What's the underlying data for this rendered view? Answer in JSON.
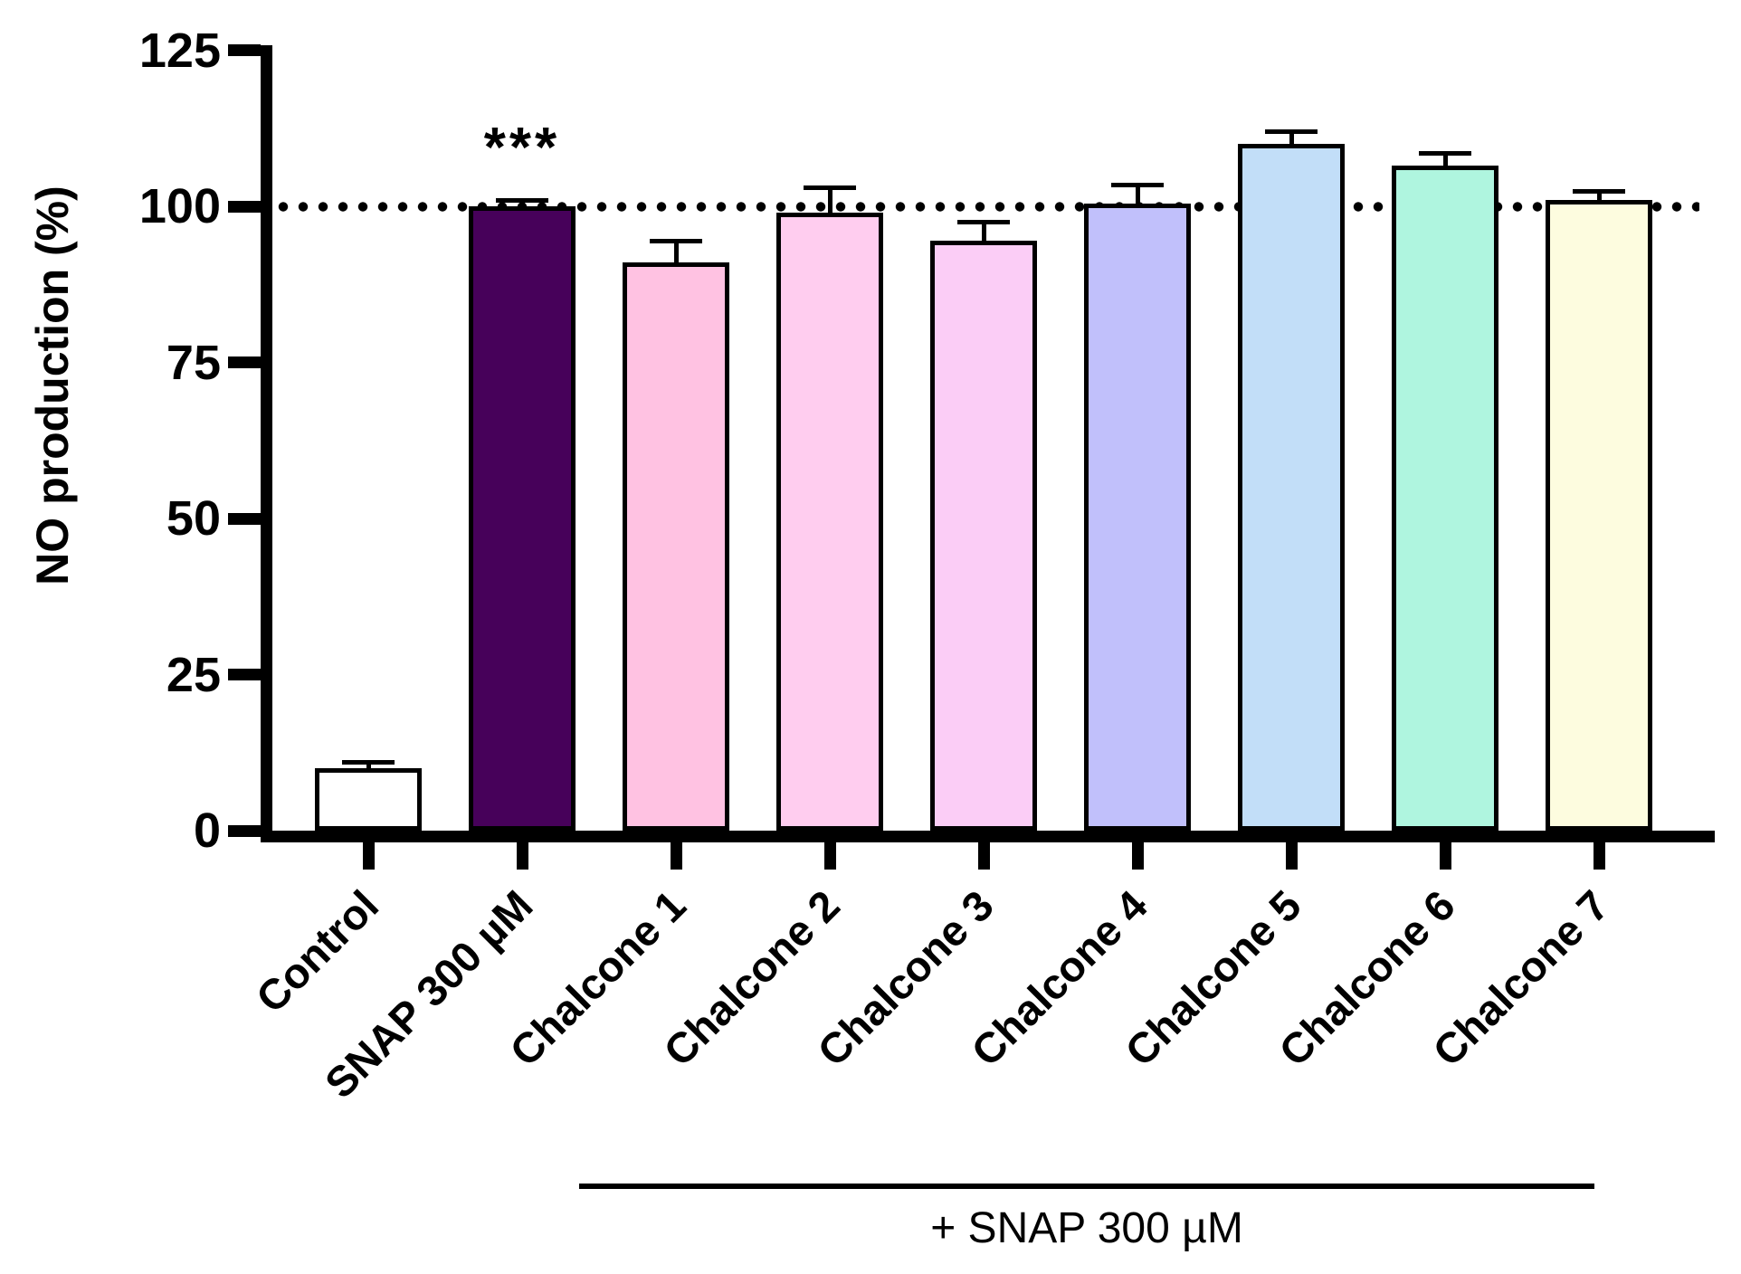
{
  "figure": {
    "background": "#FFFFFF",
    "axis_color": "#000000"
  },
  "chart_data": {
    "type": "bar",
    "title": "",
    "xlabel": "",
    "ylabel": "NO production (%)",
    "ylim": [
      0,
      125
    ],
    "yticks": [
      0,
      25,
      50,
      75,
      100,
      125
    ],
    "grid": false,
    "legend": "none",
    "reference_line": {
      "y": 100,
      "style": "dotted",
      "color": "#000000"
    },
    "categories": [
      "Control",
      "SNAP 300 µM",
      "Chalcone 1",
      "Chalcone 2",
      "Chalcone 3",
      "Chalcone 4",
      "Chalcone 5",
      "Chalcone 6",
      "Chalcone 7"
    ],
    "series": [
      {
        "name": "NO production (%)",
        "values": [
          10,
          100,
          91,
          99,
          94.5,
          100.5,
          110,
          106.5,
          101
        ],
        "errors_plus": [
          1,
          1,
          3.5,
          4,
          3,
          3,
          2,
          2,
          1.5
        ],
        "bar_colors": [
          "#FFFFFF",
          "#47015A",
          "#FFC2E2",
          "#FFCDEF",
          "#FBCDF6",
          "#C1C0FB",
          "#C2DEF8",
          "#AFF5DF",
          "#FDFCDF"
        ],
        "bar_outline_color": "#000000"
      }
    ],
    "annotations": {
      "significance": {
        "label": "***",
        "category_index": 1
      },
      "group_bracket": {
        "label": "+ SNAP 300 µM",
        "from_category_index": 2,
        "to_category_index": 8
      }
    }
  }
}
